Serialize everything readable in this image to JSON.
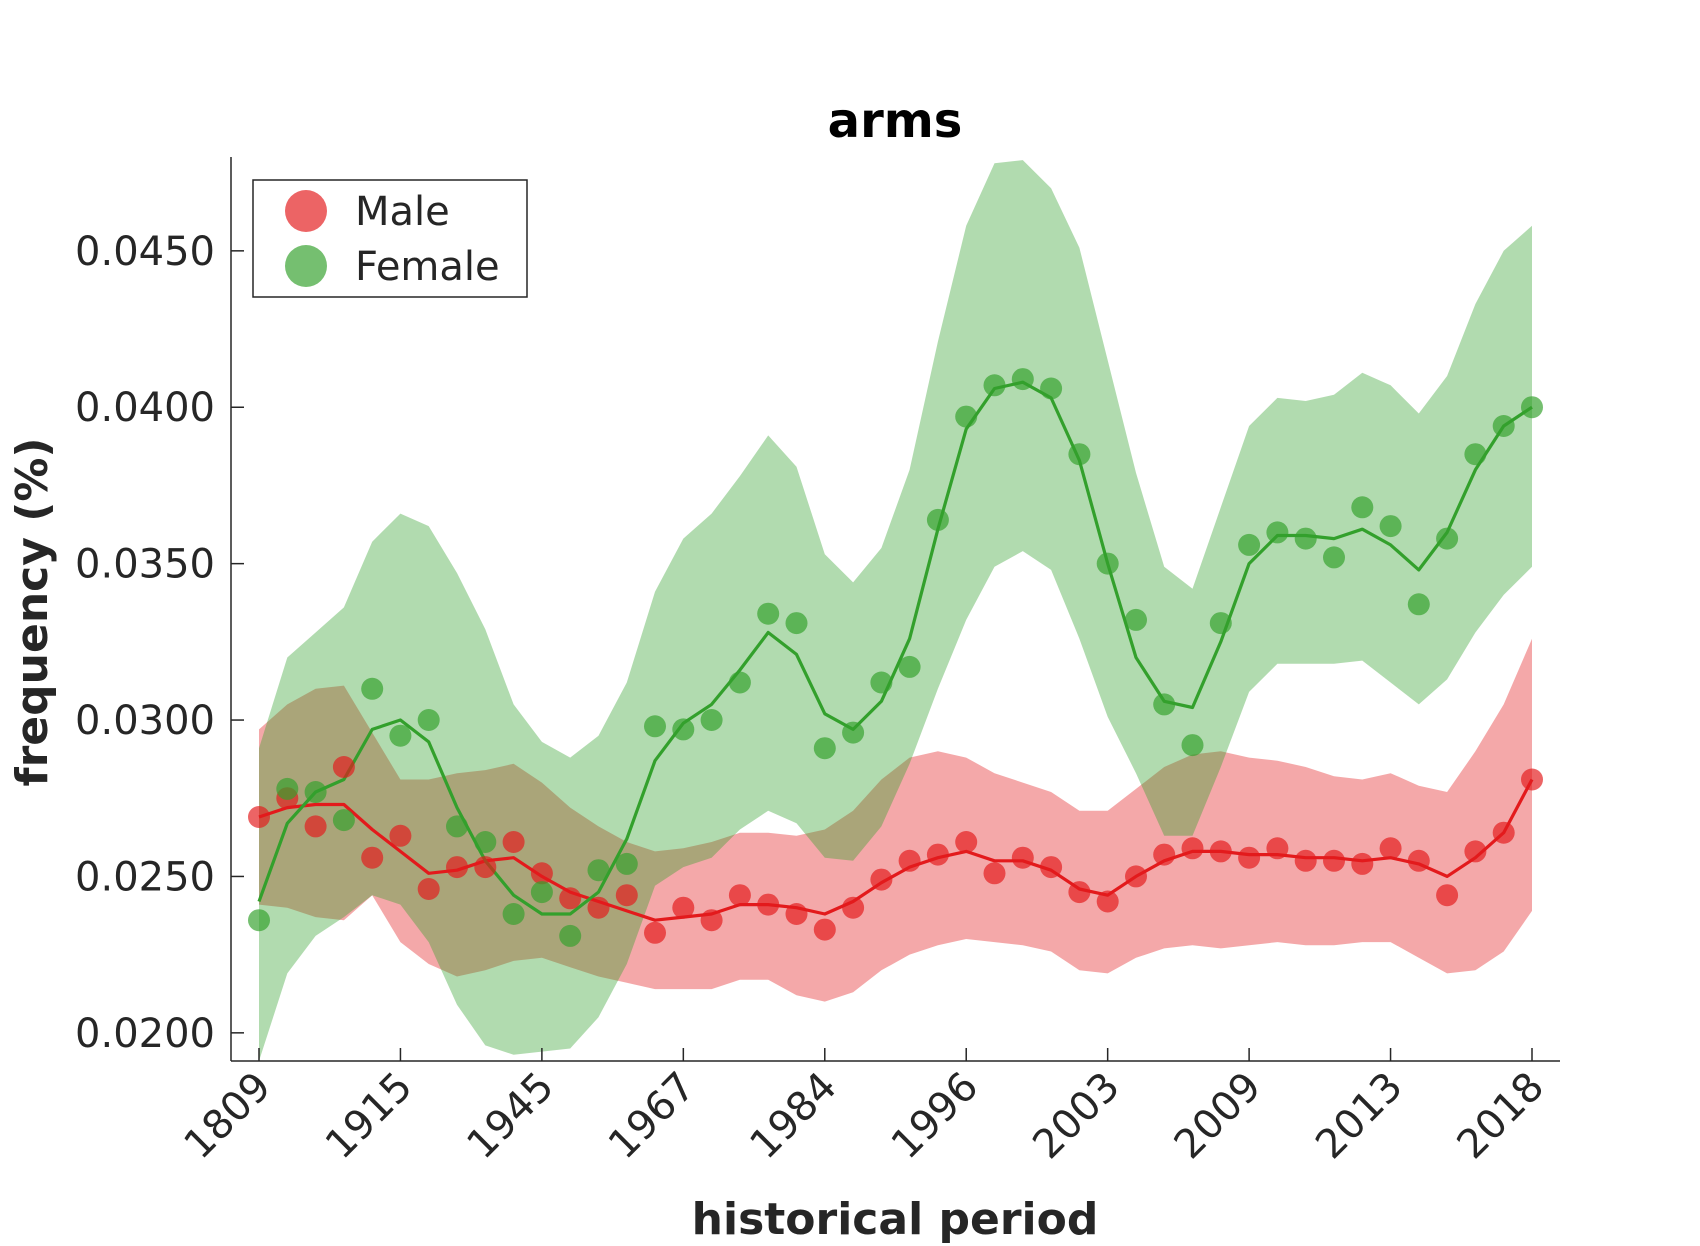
{
  "chart_data": {
    "type": "line",
    "title": "arms",
    "xlabel": "historical period",
    "ylabel": "frequency (%)",
    "ylim": [
      0.0191,
      0.048
    ],
    "yticks": [
      0.02,
      0.025,
      0.03,
      0.035,
      0.04,
      0.045
    ],
    "ytick_labels": [
      "0.0200",
      "0.0250",
      "0.0300",
      "0.0350",
      "0.0400",
      "0.0450"
    ],
    "xtick_positions": [
      1,
      6,
      11,
      16,
      21,
      26,
      31,
      36,
      41,
      46
    ],
    "xtick_labels": [
      "1809",
      "1915",
      "1945",
      "1967",
      "1984",
      "1996",
      "2003",
      "2009",
      "2013",
      "2018"
    ],
    "legend": {
      "position": "top-left",
      "entries": [
        "Male",
        "Female"
      ]
    },
    "grid": false,
    "series": [
      {
        "name": "Male",
        "color": "#e31a1c",
        "points": [
          0.0269,
          0.0275,
          0.0266,
          0.0285,
          0.0256,
          0.0263,
          0.0246,
          0.0253,
          0.0253,
          0.0261,
          0.0251,
          0.0243,
          0.024,
          0.0244,
          0.0232,
          0.024,
          0.0236,
          0.0244,
          0.0241,
          0.0238,
          0.0233,
          0.024,
          0.0249,
          0.0255,
          0.0257,
          0.0261,
          0.0251,
          0.0256,
          0.0253,
          0.0245,
          0.0242,
          0.025,
          0.0257,
          0.0259,
          0.0258,
          0.0256,
          0.0259,
          0.0255,
          0.0255,
          0.0254,
          0.0259,
          0.0255,
          0.0244,
          0.0258,
          0.0264,
          0.0281
        ],
        "trend": [
          0.0269,
          0.0272,
          0.0273,
          0.0273,
          0.0265,
          0.0258,
          0.0251,
          0.0252,
          0.0255,
          0.0256,
          0.025,
          0.0245,
          0.0242,
          0.0239,
          0.0236,
          0.0237,
          0.0238,
          0.0241,
          0.0241,
          0.024,
          0.0238,
          0.0242,
          0.0248,
          0.0253,
          0.0256,
          0.0258,
          0.0255,
          0.0255,
          0.0252,
          0.0246,
          0.0244,
          0.025,
          0.0255,
          0.0258,
          0.0258,
          0.0257,
          0.0257,
          0.0256,
          0.0256,
          0.0255,
          0.0256,
          0.0254,
          0.025,
          0.0256,
          0.0264,
          0.0281
        ],
        "upper": [
          0.0297,
          0.0305,
          0.031,
          0.0311,
          0.0296,
          0.0281,
          0.0281,
          0.0283,
          0.0284,
          0.0286,
          0.028,
          0.0272,
          0.0266,
          0.0261,
          0.0258,
          0.0259,
          0.0261,
          0.0264,
          0.0264,
          0.0263,
          0.0265,
          0.0271,
          0.0281,
          0.0288,
          0.029,
          0.0288,
          0.0283,
          0.028,
          0.0277,
          0.0271,
          0.0271,
          0.0278,
          0.0285,
          0.0289,
          0.029,
          0.0288,
          0.0287,
          0.0285,
          0.0282,
          0.0281,
          0.0283,
          0.0279,
          0.0277,
          0.029,
          0.0305,
          0.0326
        ],
        "lower": [
          0.0241,
          0.024,
          0.0237,
          0.0236,
          0.0244,
          0.0229,
          0.0222,
          0.0218,
          0.022,
          0.0223,
          0.0224,
          0.0221,
          0.0218,
          0.0216,
          0.0214,
          0.0214,
          0.0214,
          0.0217,
          0.0217,
          0.0212,
          0.021,
          0.0213,
          0.022,
          0.0225,
          0.0228,
          0.023,
          0.0229,
          0.0228,
          0.0226,
          0.022,
          0.0219,
          0.0224,
          0.0227,
          0.0228,
          0.0227,
          0.0228,
          0.0229,
          0.0228,
          0.0228,
          0.0229,
          0.0229,
          0.0224,
          0.0219,
          0.022,
          0.0226,
          0.0239
        ]
      },
      {
        "name": "Female",
        "color": "#33a02c",
        "points": [
          0.0236,
          0.0278,
          0.0277,
          0.0268,
          0.031,
          0.0295,
          0.03,
          0.0266,
          0.0261,
          0.0238,
          0.0245,
          0.0231,
          0.0252,
          0.0254,
          0.0298,
          0.0297,
          0.03,
          0.0312,
          0.0334,
          0.0331,
          0.0291,
          0.0296,
          0.0312,
          0.0317,
          0.0364,
          0.0397,
          0.0407,
          0.0409,
          0.0406,
          0.0385,
          0.035,
          0.0332,
          0.0305,
          0.0292,
          0.0331,
          0.0356,
          0.036,
          0.0358,
          0.0352,
          0.0368,
          0.0362,
          0.0337,
          0.0358,
          0.0385,
          0.0394,
          0.04
        ],
        "trend": [
          0.0242,
          0.0267,
          0.0277,
          0.0281,
          0.0297,
          0.03,
          0.0293,
          0.0272,
          0.0255,
          0.0244,
          0.0238,
          0.0238,
          0.0245,
          0.0262,
          0.0287,
          0.0299,
          0.0305,
          0.0316,
          0.0328,
          0.0321,
          0.0302,
          0.0297,
          0.0306,
          0.0326,
          0.0361,
          0.0393,
          0.0406,
          0.0408,
          0.0403,
          0.0383,
          0.035,
          0.032,
          0.0306,
          0.0304,
          0.0325,
          0.035,
          0.0359,
          0.0359,
          0.0358,
          0.0361,
          0.0356,
          0.0348,
          0.036,
          0.038,
          0.0394,
          0.04
        ],
        "upper": [
          0.0291,
          0.032,
          0.0328,
          0.0336,
          0.0357,
          0.0366,
          0.0362,
          0.0347,
          0.0329,
          0.0305,
          0.0293,
          0.0288,
          0.0295,
          0.0312,
          0.0341,
          0.0358,
          0.0366,
          0.0378,
          0.0391,
          0.0381,
          0.0353,
          0.0344,
          0.0355,
          0.038,
          0.0421,
          0.0458,
          0.0478,
          0.0479,
          0.047,
          0.0451,
          0.0415,
          0.0379,
          0.0349,
          0.0342,
          0.0368,
          0.0394,
          0.0403,
          0.0402,
          0.0404,
          0.0411,
          0.0407,
          0.0398,
          0.041,
          0.0433,
          0.045,
          0.0458
        ],
        "lower": [
          0.0191,
          0.0219,
          0.0231,
          0.0237,
          0.0244,
          0.0241,
          0.0229,
          0.0209,
          0.0196,
          0.0193,
          0.0194,
          0.0195,
          0.0205,
          0.0222,
          0.0247,
          0.0253,
          0.0256,
          0.0265,
          0.0271,
          0.0267,
          0.0256,
          0.0255,
          0.0266,
          0.0286,
          0.031,
          0.0332,
          0.0349,
          0.0354,
          0.0348,
          0.0326,
          0.0301,
          0.0283,
          0.0263,
          0.0263,
          0.0285,
          0.0309,
          0.0318,
          0.0318,
          0.0318,
          0.0319,
          0.0312,
          0.0305,
          0.0313,
          0.0328,
          0.034,
          0.0349
        ]
      }
    ]
  }
}
